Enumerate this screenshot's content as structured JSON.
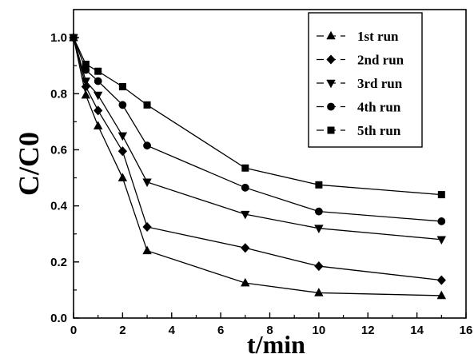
{
  "chart_data": {
    "type": "line",
    "title": "",
    "xlabel": "t/min",
    "ylabel": "C/C0",
    "xlim": [
      0,
      16
    ],
    "ylim": [
      0,
      1.1
    ],
    "xticks": [
      0,
      2,
      4,
      6,
      8,
      10,
      12,
      14,
      16
    ],
    "yticks": [
      0.0,
      0.2,
      0.4,
      0.6,
      0.8,
      1.0
    ],
    "ytick_labels": [
      "0.0",
      "0.2",
      "0.4",
      "0.6",
      "0.8",
      "1.0"
    ],
    "grid": false,
    "legend_position": "top-right",
    "color": "#000000",
    "series": [
      {
        "name": "1st run",
        "marker": "triangle-up",
        "x": [
          0,
          0.5,
          1,
          2,
          3,
          7,
          10,
          15
        ],
        "y": [
          1.0,
          0.795,
          0.685,
          0.5,
          0.24,
          0.125,
          0.09,
          0.08
        ]
      },
      {
        "name": "2nd run",
        "marker": "diamond",
        "x": [
          0,
          0.5,
          1,
          2,
          3,
          7,
          10,
          15
        ],
        "y": [
          1.0,
          0.825,
          0.74,
          0.595,
          0.325,
          0.25,
          0.185,
          0.135
        ]
      },
      {
        "name": "3rd run",
        "marker": "triangle-down",
        "x": [
          0,
          0.5,
          1,
          2,
          3,
          7,
          10,
          15
        ],
        "y": [
          1.0,
          0.845,
          0.795,
          0.65,
          0.485,
          0.37,
          0.32,
          0.28
        ]
      },
      {
        "name": "4th run",
        "marker": "circle",
        "x": [
          0,
          0.5,
          1,
          2,
          3,
          7,
          10,
          15
        ],
        "y": [
          1.0,
          0.885,
          0.845,
          0.76,
          0.615,
          0.465,
          0.38,
          0.345
        ]
      },
      {
        "name": "5th run",
        "marker": "square",
        "x": [
          0,
          0.5,
          1,
          2,
          3,
          7,
          10,
          15
        ],
        "y": [
          1.0,
          0.905,
          0.88,
          0.825,
          0.76,
          0.535,
          0.475,
          0.44
        ]
      }
    ]
  }
}
